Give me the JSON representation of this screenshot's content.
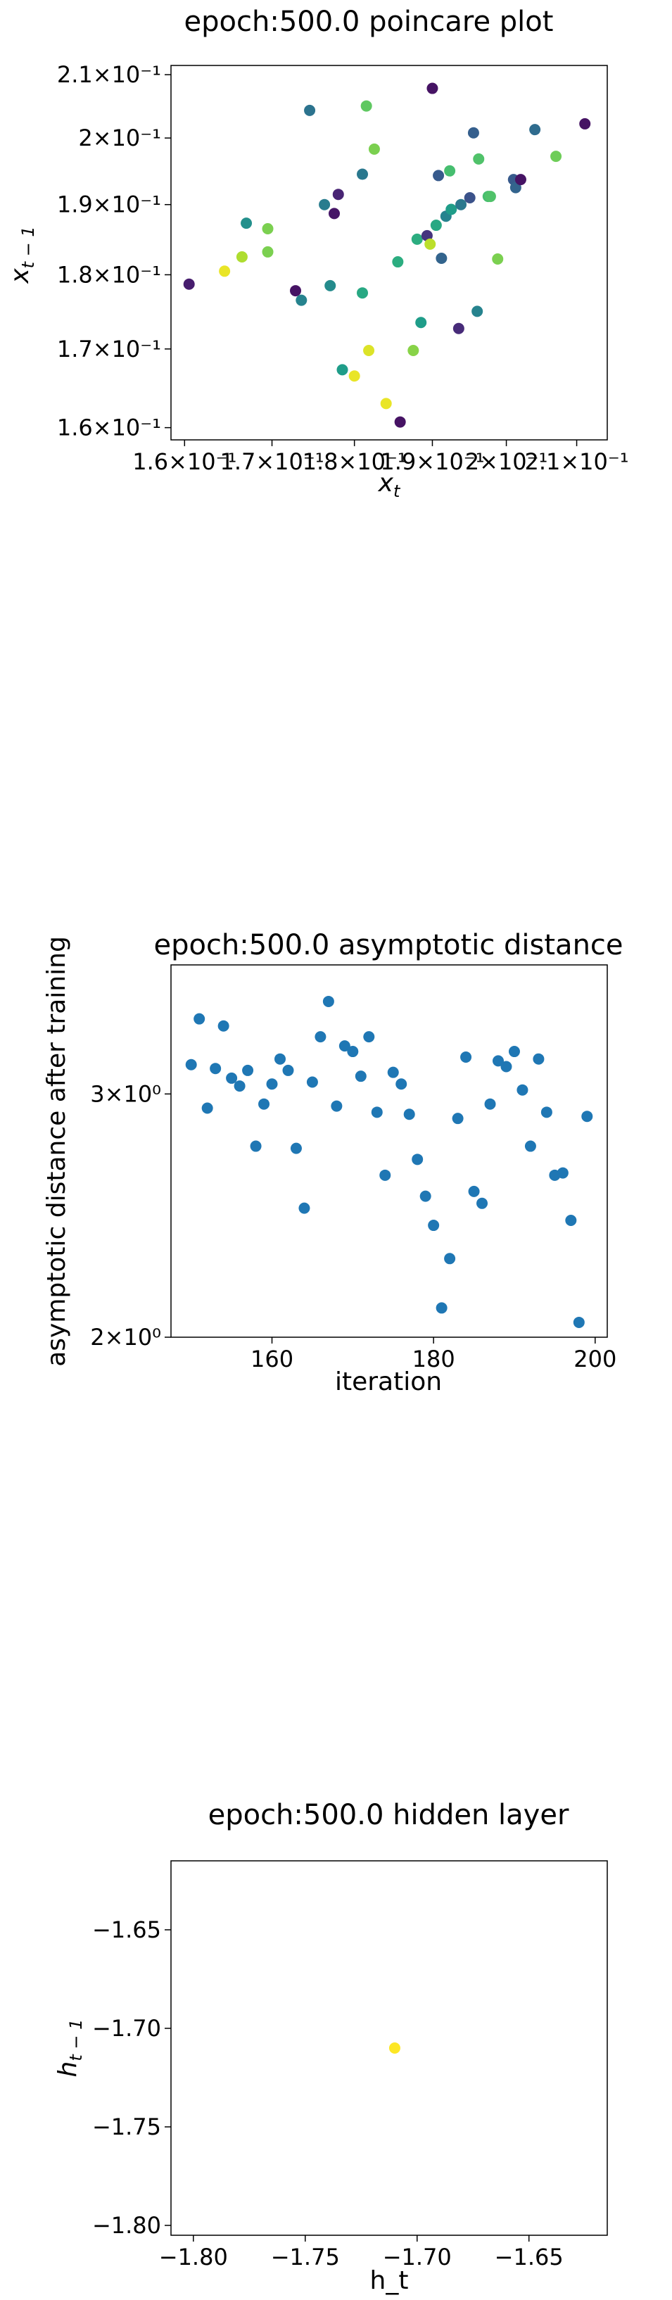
{
  "chart_data": [
    {
      "type": "scatter",
      "title": "epoch:500.0 poincare plot",
      "xlabel": "x_t",
      "ylabel": "x_{t-1}",
      "xscale": "log",
      "yscale": "log",
      "xlim": [
        0.1585,
        0.2145
      ],
      "ylim": [
        0.1585,
        0.2115
      ],
      "xticks": [
        {
          "value": 0.16,
          "label": "1.6×10⁻¹"
        },
        {
          "value": 0.17,
          "label": "1.7×10⁻¹"
        },
        {
          "value": 0.18,
          "label": "1.8×10⁻¹"
        },
        {
          "value": 0.19,
          "label": "1.9×10⁻¹"
        },
        {
          "value": 0.2,
          "label": "2×10⁻¹"
        },
        {
          "value": 0.21,
          "label": "2.1×10⁻¹"
        }
      ],
      "yticks": [
        {
          "value": 0.16,
          "label": "1.6×10⁻¹"
        },
        {
          "value": 0.17,
          "label": "1.7×10⁻¹"
        },
        {
          "value": 0.18,
          "label": "1.8×10⁻¹"
        },
        {
          "value": 0.19,
          "label": "1.9×10⁻¹"
        },
        {
          "value": 0.2,
          "label": "2×10⁻¹"
        },
        {
          "value": 0.21,
          "label": "2.1×10⁻¹"
        }
      ],
      "grid": false,
      "colormap": "viridis",
      "points": [
        {
          "x": 0.1605,
          "y": 0.1787,
          "c": 0.08
        },
        {
          "x": 0.1645,
          "y": 0.1805,
          "c": 0.97
        },
        {
          "x": 0.1665,
          "y": 0.1825,
          "c": 0.88
        },
        {
          "x": 0.167,
          "y": 0.1873,
          "c": 0.5
        },
        {
          "x": 0.1695,
          "y": 0.1832,
          "c": 0.8
        },
        {
          "x": 0.1695,
          "y": 0.1865,
          "c": 0.8
        },
        {
          "x": 0.1728,
          "y": 0.1778,
          "c": 0.05
        },
        {
          "x": 0.1735,
          "y": 0.1765,
          "c": 0.45
        },
        {
          "x": 0.1745,
          "y": 0.2043,
          "c": 0.38
        },
        {
          "x": 0.1763,
          "y": 0.19,
          "c": 0.42
        },
        {
          "x": 0.177,
          "y": 0.1785,
          "c": 0.48
        },
        {
          "x": 0.1775,
          "y": 0.1887,
          "c": 0.06
        },
        {
          "x": 0.178,
          "y": 0.1915,
          "c": 0.1
        },
        {
          "x": 0.1785,
          "y": 0.1673,
          "c": 0.55
        },
        {
          "x": 0.18,
          "y": 0.1665,
          "c": 0.97
        },
        {
          "x": 0.181,
          "y": 0.1775,
          "c": 0.6
        },
        {
          "x": 0.181,
          "y": 0.1945,
          "c": 0.4
        },
        {
          "x": 0.1815,
          "y": 0.205,
          "c": 0.75
        },
        {
          "x": 0.1818,
          "y": 0.1698,
          "c": 0.95
        },
        {
          "x": 0.1825,
          "y": 0.1983,
          "c": 0.8
        },
        {
          "x": 0.184,
          "y": 0.163,
          "c": 0.97
        },
        {
          "x": 0.1855,
          "y": 0.1818,
          "c": 0.62
        },
        {
          "x": 0.1858,
          "y": 0.1607,
          "c": 0.05
        },
        {
          "x": 0.1875,
          "y": 0.1698,
          "c": 0.82
        },
        {
          "x": 0.188,
          "y": 0.185,
          "c": 0.62
        },
        {
          "x": 0.1885,
          "y": 0.1735,
          "c": 0.55
        },
        {
          "x": 0.1893,
          "y": 0.1855,
          "c": 0.15
        },
        {
          "x": 0.1897,
          "y": 0.1843,
          "c": 0.9
        },
        {
          "x": 0.19,
          "y": 0.2078,
          "c": 0.05
        },
        {
          "x": 0.1905,
          "y": 0.187,
          "c": 0.6
        },
        {
          "x": 0.1908,
          "y": 0.1943,
          "c": 0.28
        },
        {
          "x": 0.1912,
          "y": 0.1823,
          "c": 0.32
        },
        {
          "x": 0.1918,
          "y": 0.1883,
          "c": 0.45
        },
        {
          "x": 0.1923,
          "y": 0.195,
          "c": 0.7
        },
        {
          "x": 0.1925,
          "y": 0.1893,
          "c": 0.55
        },
        {
          "x": 0.1935,
          "y": 0.1727,
          "c": 0.12
        },
        {
          "x": 0.1938,
          "y": 0.19,
          "c": 0.4
        },
        {
          "x": 0.195,
          "y": 0.191,
          "c": 0.25
        },
        {
          "x": 0.1955,
          "y": 0.2008,
          "c": 0.3
        },
        {
          "x": 0.196,
          "y": 0.175,
          "c": 0.45
        },
        {
          "x": 0.1962,
          "y": 0.1968,
          "c": 0.72
        },
        {
          "x": 0.1975,
          "y": 0.1912,
          "c": 0.7
        },
        {
          "x": 0.1978,
          "y": 0.1912,
          "c": 0.72
        },
        {
          "x": 0.1988,
          "y": 0.1822,
          "c": 0.8
        },
        {
          "x": 0.201,
          "y": 0.1937,
          "c": 0.28
        },
        {
          "x": 0.2013,
          "y": 0.1925,
          "c": 0.32
        },
        {
          "x": 0.202,
          "y": 0.1937,
          "c": 0.05
        },
        {
          "x": 0.204,
          "y": 0.2013,
          "c": 0.35
        },
        {
          "x": 0.207,
          "y": 0.1972,
          "c": 0.78
        },
        {
          "x": 0.2112,
          "y": 0.2022,
          "c": 0.05
        }
      ]
    },
    {
      "type": "scatter",
      "title": "epoch:500.0 asymptotic distance",
      "xlabel": "iteration",
      "ylabel": "asymptotic distance after training",
      "xscale": "linear",
      "yscale": "log",
      "xlim": [
        147.5,
        201.5
      ],
      "ylim": [
        2.0,
        3.72
      ],
      "xticks": [
        {
          "value": 160,
          "label": "160"
        },
        {
          "value": 180,
          "label": "180"
        },
        {
          "value": 200,
          "label": "200"
        }
      ],
      "yticks": [
        {
          "value": 2,
          "label": "2×10⁰"
        },
        {
          "value": 3,
          "label": "3×10⁰"
        }
      ],
      "grid": false,
      "color": "#1f77b4",
      "points": [
        {
          "x": 150,
          "y": 3.15
        },
        {
          "x": 151,
          "y": 3.4
        },
        {
          "x": 152,
          "y": 2.93
        },
        {
          "x": 153,
          "y": 3.13
        },
        {
          "x": 154,
          "y": 3.36
        },
        {
          "x": 155,
          "y": 3.08
        },
        {
          "x": 156,
          "y": 3.04
        },
        {
          "x": 157,
          "y": 3.12
        },
        {
          "x": 158,
          "y": 2.75
        },
        {
          "x": 159,
          "y": 2.95
        },
        {
          "x": 160,
          "y": 3.05
        },
        {
          "x": 161,
          "y": 3.18
        },
        {
          "x": 162,
          "y": 3.12
        },
        {
          "x": 163,
          "y": 2.74
        },
        {
          "x": 164,
          "y": 2.48
        },
        {
          "x": 165,
          "y": 3.06
        },
        {
          "x": 166,
          "y": 3.3
        },
        {
          "x": 167,
          "y": 3.5
        },
        {
          "x": 168,
          "y": 2.94
        },
        {
          "x": 169,
          "y": 3.25
        },
        {
          "x": 170,
          "y": 3.22
        },
        {
          "x": 171,
          "y": 3.09
        },
        {
          "x": 172,
          "y": 3.3
        },
        {
          "x": 173,
          "y": 2.91
        },
        {
          "x": 174,
          "y": 2.62
        },
        {
          "x": 175,
          "y": 3.11
        },
        {
          "x": 176,
          "y": 3.05
        },
        {
          "x": 177,
          "y": 2.9
        },
        {
          "x": 178,
          "y": 2.69
        },
        {
          "x": 179,
          "y": 2.53
        },
        {
          "x": 180,
          "y": 2.41
        },
        {
          "x": 181,
          "y": 2.1
        },
        {
          "x": 182,
          "y": 2.28
        },
        {
          "x": 183,
          "y": 2.88
        },
        {
          "x": 184,
          "y": 3.19
        },
        {
          "x": 185,
          "y": 2.55
        },
        {
          "x": 186,
          "y": 2.5
        },
        {
          "x": 187,
          "y": 2.95
        },
        {
          "x": 188,
          "y": 3.17
        },
        {
          "x": 189,
          "y": 3.14
        },
        {
          "x": 190,
          "y": 3.22
        },
        {
          "x": 191,
          "y": 3.02
        },
        {
          "x": 192,
          "y": 2.75
        },
        {
          "x": 193,
          "y": 3.18
        },
        {
          "x": 194,
          "y": 2.91
        },
        {
          "x": 195,
          "y": 2.62
        },
        {
          "x": 196,
          "y": 2.63
        },
        {
          "x": 197,
          "y": 2.43
        },
        {
          "x": 198,
          "y": 2.05
        },
        {
          "x": 199,
          "y": 2.89
        }
      ]
    },
    {
      "type": "scatter",
      "title": "epoch:500.0 hidden layer",
      "xlabel": "h_t",
      "ylabel": "h_{t-1}",
      "xscale": "linear",
      "yscale": "linear",
      "xlim": [
        -1.81,
        -1.615
      ],
      "ylim": [
        -1.805,
        -1.615
      ],
      "xticks": [
        {
          "value": -1.8,
          "label": "−1.80"
        },
        {
          "value": -1.75,
          "label": "−1.75"
        },
        {
          "value": -1.7,
          "label": "−1.70"
        },
        {
          "value": -1.65,
          "label": "−1.65"
        }
      ],
      "yticks": [
        {
          "value": -1.8,
          "label": "−1.80"
        },
        {
          "value": -1.75,
          "label": "−1.75"
        },
        {
          "value": -1.7,
          "label": "−1.70"
        },
        {
          "value": -1.65,
          "label": "−1.65"
        }
      ],
      "grid": false,
      "color": "#fde725",
      "points": [
        {
          "x": -1.71,
          "y": -1.71
        }
      ]
    }
  ]
}
